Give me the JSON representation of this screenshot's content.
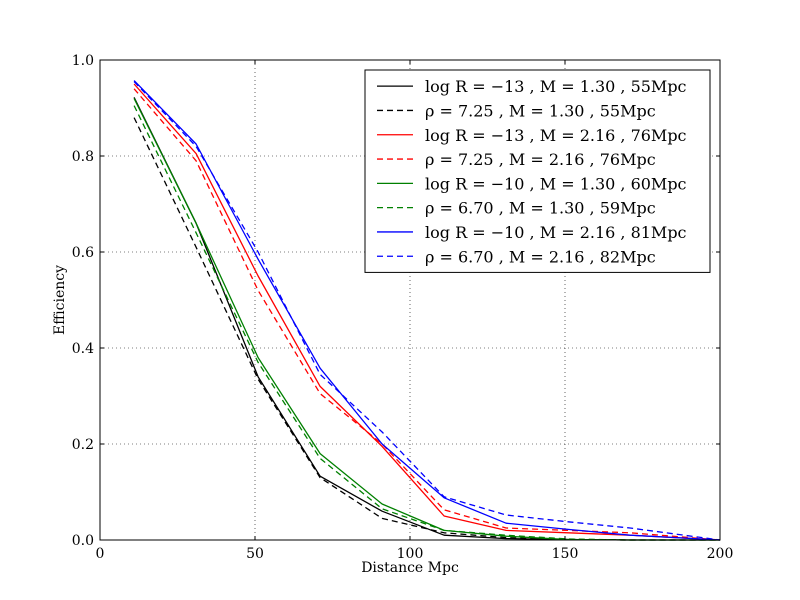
{
  "chart_data": {
    "type": "line",
    "title": "",
    "xlabel": "Distance Mpc",
    "ylabel": "Efficiency",
    "xlim": [
      0,
      200
    ],
    "ylim": [
      0,
      1.0
    ],
    "xticks": [
      0,
      50,
      100,
      150,
      200
    ],
    "xtick_labels": [
      "0",
      "50",
      "100",
      "150",
      "200"
    ],
    "yticks": [
      0.0,
      0.2,
      0.4,
      0.6,
      0.8,
      1.0
    ],
    "ytick_labels": [
      "0.0",
      "0.2",
      "0.4",
      "0.6",
      "0.8",
      "1.0"
    ],
    "grid": true,
    "legend_position": "top-right",
    "series": [
      {
        "name": "log R = −13 , M = 1.30 , 55Mpc",
        "color": "#000000",
        "dash": "solid",
        "x": [
          11,
          31,
          51,
          71,
          91,
          111,
          131,
          151,
          171,
          200
        ],
        "y": [
          0.922,
          0.66,
          0.34,
          0.133,
          0.06,
          0.01,
          0.003,
          0.001,
          0.0,
          0.0
        ]
      },
      {
        "name": "ρ = 7.25 , M = 1.30 , 55Mpc",
        "color": "#000000",
        "dash": "dashed",
        "x": [
          11,
          31,
          51,
          71,
          91,
          111,
          131,
          151,
          171,
          200
        ],
        "y": [
          0.88,
          0.61,
          0.335,
          0.13,
          0.045,
          0.015,
          0.005,
          0.001,
          0.0,
          0.0
        ]
      },
      {
        "name": "log R = −13 , M = 2.16 , 76Mpc",
        "color": "#ff0000",
        "dash": "solid",
        "x": [
          11,
          31,
          51,
          71,
          91,
          111,
          131,
          151,
          171,
          200
        ],
        "y": [
          0.95,
          0.805,
          0.55,
          0.32,
          0.195,
          0.05,
          0.02,
          0.015,
          0.01,
          0.0
        ]
      },
      {
        "name": "ρ = 7.25 , M = 2.16 , 76Mpc",
        "color": "#ff0000",
        "dash": "dashed",
        "x": [
          11,
          31,
          51,
          71,
          91,
          111,
          131,
          151,
          171,
          200
        ],
        "y": [
          0.94,
          0.79,
          0.52,
          0.305,
          0.2,
          0.063,
          0.025,
          0.02,
          0.015,
          0.0
        ]
      },
      {
        "name": "log R = −10 , M = 1.30 , 60Mpc",
        "color": "#008000",
        "dash": "solid",
        "x": [
          11,
          31,
          51,
          71,
          91,
          111,
          131,
          151,
          171,
          200
        ],
        "y": [
          0.92,
          0.66,
          0.38,
          0.18,
          0.075,
          0.02,
          0.008,
          0.001,
          0.0,
          0.0
        ]
      },
      {
        "name": "ρ = 6.70 , M = 1.30 , 59Mpc",
        "color": "#008000",
        "dash": "dashed",
        "x": [
          11,
          31,
          51,
          71,
          91,
          111,
          131,
          151,
          171,
          200
        ],
        "y": [
          0.905,
          0.64,
          0.37,
          0.17,
          0.065,
          0.02,
          0.01,
          0.002,
          0.0,
          0.0
        ]
      },
      {
        "name": "log R = −10 , M = 2.16 , 81Mpc",
        "color": "#0000ff",
        "dash": "solid",
        "x": [
          11,
          31,
          51,
          71,
          91,
          111,
          131,
          151,
          171,
          200
        ],
        "y": [
          0.957,
          0.825,
          0.585,
          0.358,
          0.2,
          0.088,
          0.035,
          0.022,
          0.01,
          0.0
        ]
      },
      {
        "name": "ρ = 6.70 , M = 2.16 , 82Mpc",
        "color": "#0000ff",
        "dash": "dashed",
        "x": [
          11,
          31,
          51,
          71,
          91,
          111,
          131,
          151,
          171,
          200
        ],
        "y": [
          0.955,
          0.82,
          0.6,
          0.345,
          0.225,
          0.09,
          0.052,
          0.038,
          0.025,
          0.0
        ]
      }
    ]
  }
}
